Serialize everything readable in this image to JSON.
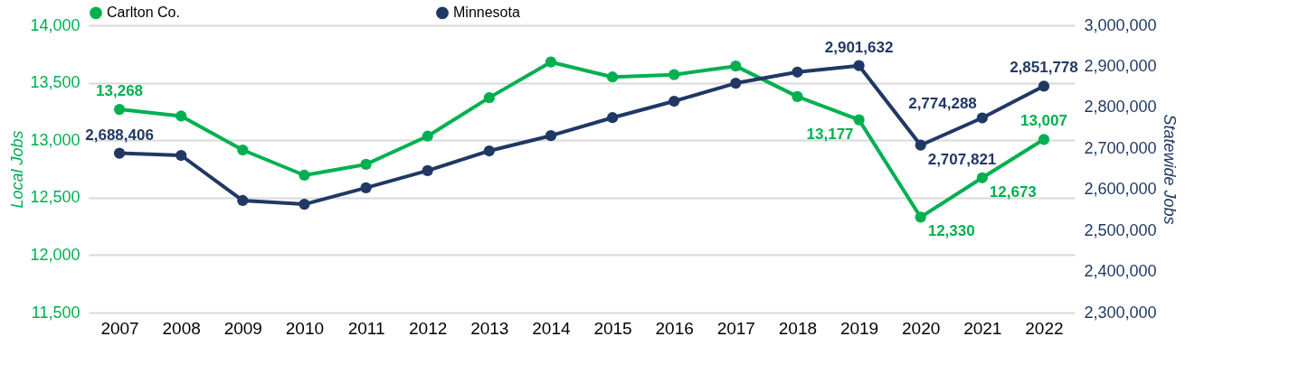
{
  "chart_data": {
    "type": "line",
    "ylabel": "Local Jobs",
    "y2label": "Statewide Jobs",
    "categories": [
      "2007",
      "2008",
      "2009",
      "2010",
      "2011",
      "2012",
      "2013",
      "2014",
      "2015",
      "2016",
      "2017",
      "2018",
      "2019",
      "2020",
      "2021",
      "2022"
    ],
    "series": [
      {
        "name": "Carlton Co.",
        "color": "#00b050",
        "values": [
          13268,
          13210,
          12915,
          12695,
          12790,
          13035,
          13370,
          13680,
          13550,
          13570,
          13645,
          13380,
          13177,
          12330,
          12673,
          13007
        ],
        "value_labels": [
          "13,268",
          null,
          null,
          null,
          null,
          null,
          null,
          null,
          null,
          null,
          null,
          null,
          "13,177",
          "12,330",
          "12,673",
          "13,007"
        ]
      },
      {
        "name": "Minnesota",
        "color": "#203864",
        "axis": "y2",
        "values": [
          2688406,
          2683000,
          2573000,
          2564000,
          2604000,
          2646000,
          2694000,
          2731000,
          2775000,
          2815000,
          2859000,
          2886000,
          2901632,
          2707821,
          2774288,
          2851778
        ],
        "value_labels": [
          "2,688,406",
          null,
          null,
          null,
          null,
          null,
          null,
          null,
          null,
          null,
          null,
          null,
          "2,901,632",
          "2,707,821",
          "2,774,288",
          "2,851,778"
        ]
      }
    ],
    "ylim": [
      11500,
      14000
    ],
    "yticks": [
      {
        "value": 11500,
        "label": "11,500"
      },
      {
        "value": 12000,
        "label": "12,000"
      },
      {
        "value": 12500,
        "label": "12,500"
      },
      {
        "value": 13000,
        "label": "13,000"
      },
      {
        "value": 13500,
        "label": "13,500"
      },
      {
        "value": 14000,
        "label": "14,000"
      }
    ],
    "y2lim": [
      2300000,
      3000000
    ],
    "y2ticks": [
      {
        "value": 2300000,
        "label": "2,300,000"
      },
      {
        "value": 2400000,
        "label": "2,400,000"
      },
      {
        "value": 2500000,
        "label": "2,500,000"
      },
      {
        "value": 2600000,
        "label": "2,600,000"
      },
      {
        "value": 2700000,
        "label": "2,700,000"
      },
      {
        "value": 2800000,
        "label": "2,800,000"
      },
      {
        "value": 2900000,
        "label": "2,900,000"
      },
      {
        "value": 3000000,
        "label": "3,000,000"
      }
    ],
    "grid": "y",
    "legend": "top",
    "marker": "circle"
  }
}
